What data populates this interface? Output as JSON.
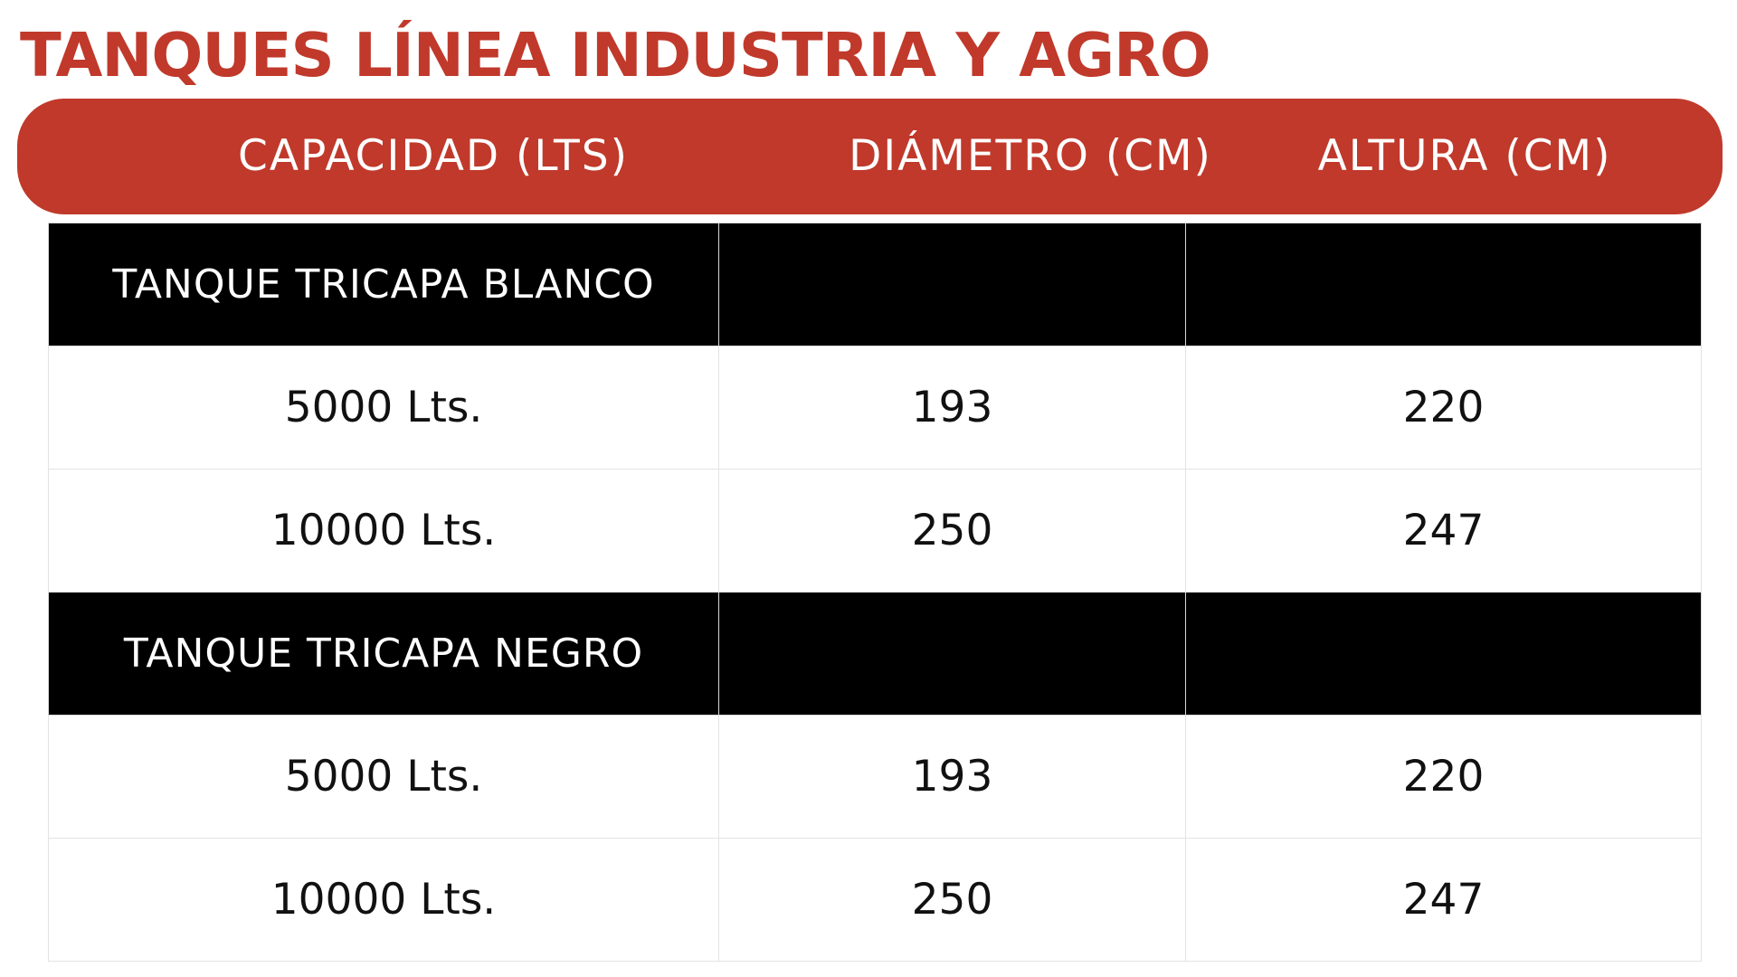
{
  "title": "TANQUES LÍNEA INDUSTRIA Y AGRO",
  "colors": {
    "accent": "#c0392b",
    "group_row": "#000000",
    "text": "#111111"
  },
  "headers": [
    "CAPACIDAD (LTS)",
    "DIÁMETRO (CM)",
    "ALTURA (CM)"
  ],
  "groups": [
    {
      "name": "TANQUE TRICAPA BLANCO",
      "rows": [
        [
          "5000 Lts.",
          "193",
          "220"
        ],
        [
          "10000 Lts.",
          "250",
          "247"
        ]
      ]
    },
    {
      "name": "TANQUE TRICAPA NEGRO",
      "rows": [
        [
          "5000 Lts.",
          "193",
          "220"
        ],
        [
          "10000 Lts.",
          "250",
          "247"
        ]
      ]
    }
  ]
}
